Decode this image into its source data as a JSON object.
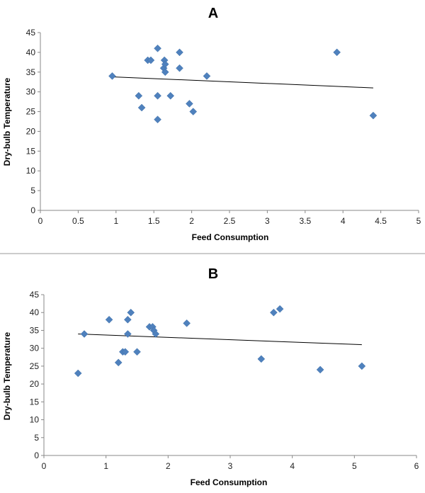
{
  "chart_data": [
    {
      "type": "scatter",
      "title": "A",
      "xlabel": "Feed  Consumption",
      "ylabel": "Dry-bulb Temperature",
      "xlim": [
        0,
        5
      ],
      "ylim": [
        0,
        45
      ],
      "xticks": [
        0,
        0.5,
        1,
        1.5,
        2,
        2.5,
        3,
        3.5,
        4,
        4.5,
        5
      ],
      "yticks": [
        0,
        5,
        10,
        15,
        20,
        25,
        30,
        35,
        40,
        45
      ],
      "xtick_labels": [
        "0",
        "0.5",
        "1",
        "1.5",
        "2",
        "2.5",
        "3",
        "3.5",
        "4",
        "4.5",
        "5"
      ],
      "ytick_labels": [
        "0",
        "5",
        "10",
        "15",
        "20",
        "25",
        "30",
        "35",
        "40",
        "45"
      ],
      "marker_color": "#4f81bd",
      "points": [
        {
          "x": 0.95,
          "y": 34
        },
        {
          "x": 1.3,
          "y": 29
        },
        {
          "x": 1.34,
          "y": 26
        },
        {
          "x": 1.42,
          "y": 38
        },
        {
          "x": 1.46,
          "y": 38
        },
        {
          "x": 1.55,
          "y": 41
        },
        {
          "x": 1.55,
          "y": 29
        },
        {
          "x": 1.55,
          "y": 23
        },
        {
          "x": 1.63,
          "y": 36
        },
        {
          "x": 1.64,
          "y": 38
        },
        {
          "x": 1.65,
          "y": 37
        },
        {
          "x": 1.65,
          "y": 35
        },
        {
          "x": 1.72,
          "y": 29
        },
        {
          "x": 1.84,
          "y": 40
        },
        {
          "x": 1.84,
          "y": 36
        },
        {
          "x": 1.97,
          "y": 27
        },
        {
          "x": 2.02,
          "y": 25
        },
        {
          "x": 2.2,
          "y": 34
        },
        {
          "x": 3.92,
          "y": 40
        },
        {
          "x": 4.4,
          "y": 24
        }
      ],
      "trendline": {
        "x": [
          0.95,
          4.4
        ],
        "y": [
          33.8,
          31.0
        ]
      }
    },
    {
      "type": "scatter",
      "title": "B",
      "xlabel": "Feed  Consumption",
      "ylabel": "Dry-bulb Temperature",
      "xlim": [
        0,
        6
      ],
      "ylim": [
        0,
        45
      ],
      "xticks": [
        0,
        1,
        2,
        3,
        4,
        5,
        6
      ],
      "yticks": [
        0,
        5,
        10,
        15,
        20,
        25,
        30,
        35,
        40,
        45
      ],
      "xtick_labels": [
        "0",
        "1",
        "2",
        "3",
        "4",
        "5",
        "6"
      ],
      "ytick_labels": [
        "0",
        "5",
        "10",
        "15",
        "20",
        "25",
        "30",
        "35",
        "40",
        "45"
      ],
      "marker_color": "#4f81bd",
      "points": [
        {
          "x": 0.55,
          "y": 23
        },
        {
          "x": 0.65,
          "y": 34
        },
        {
          "x": 1.05,
          "y": 38
        },
        {
          "x": 1.2,
          "y": 26
        },
        {
          "x": 1.27,
          "y": 29
        },
        {
          "x": 1.31,
          "y": 29
        },
        {
          "x": 1.35,
          "y": 38
        },
        {
          "x": 1.35,
          "y": 34
        },
        {
          "x": 1.4,
          "y": 40
        },
        {
          "x": 1.5,
          "y": 29
        },
        {
          "x": 1.7,
          "y": 36
        },
        {
          "x": 1.75,
          "y": 36
        },
        {
          "x": 1.77,
          "y": 35
        },
        {
          "x": 1.8,
          "y": 34
        },
        {
          "x": 2.3,
          "y": 37
        },
        {
          "x": 3.5,
          "y": 27
        },
        {
          "x": 3.7,
          "y": 40
        },
        {
          "x": 3.8,
          "y": 41
        },
        {
          "x": 4.45,
          "y": 24
        },
        {
          "x": 5.12,
          "y": 25
        }
      ],
      "trendline": {
        "x": [
          0.55,
          5.12
        ],
        "y": [
          34.0,
          31.0
        ]
      }
    }
  ]
}
